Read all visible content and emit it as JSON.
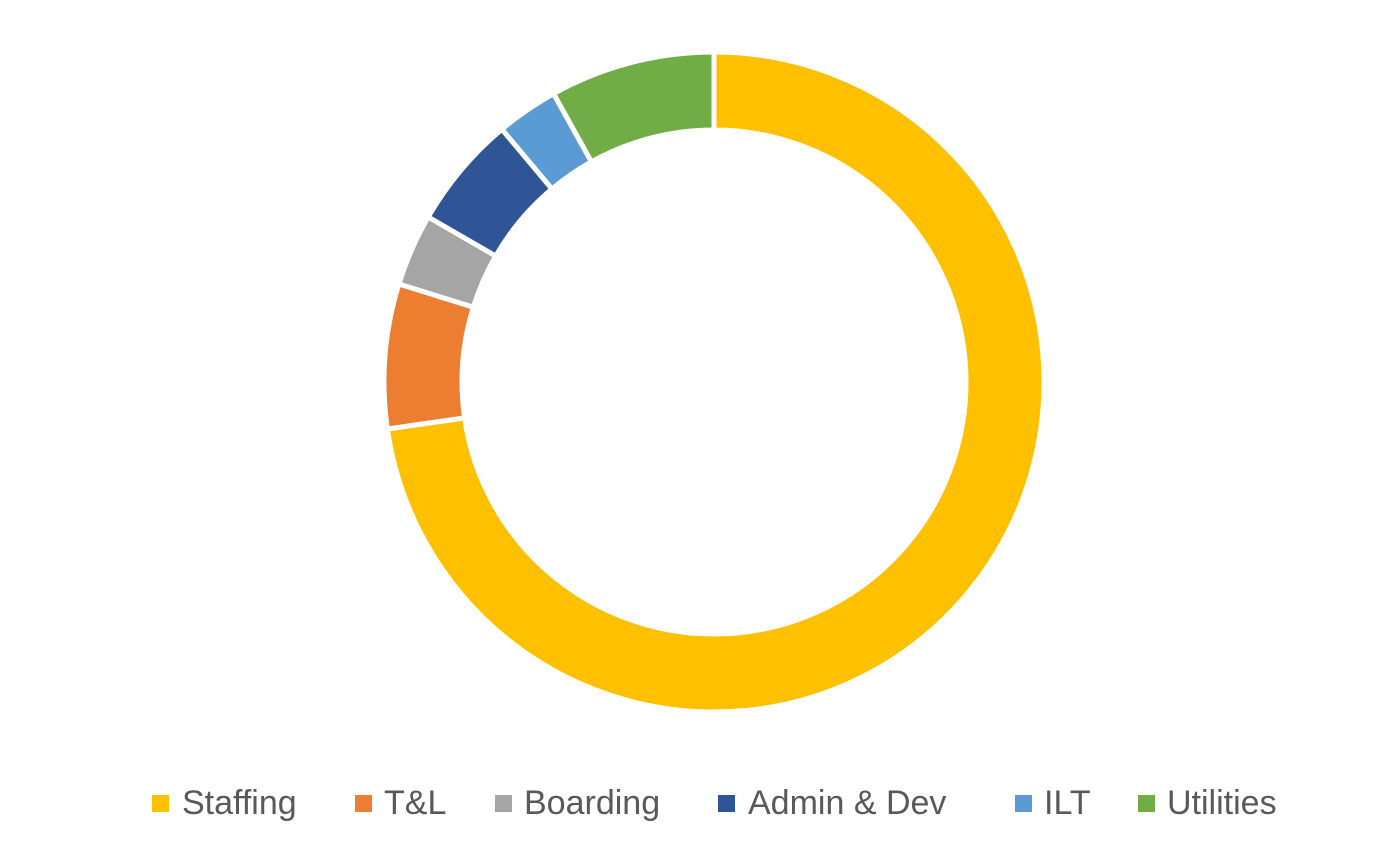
{
  "chart_data": {
    "type": "pie",
    "donut": true,
    "title": "",
    "categories": [
      "Staffing",
      "T&L",
      "Boarding",
      "Admin & Dev",
      "ILT",
      "Utilities"
    ],
    "values": [
      72,
      7,
      3.5,
      5.5,
      3,
      8
    ],
    "unit": "%",
    "colors": [
      "#FFC000",
      "#ED7D31",
      "#A5A5A5",
      "#2F5597",
      "#5B9BD5",
      "#70AD47"
    ],
    "start_angle_deg": 0,
    "direction": "clockwise",
    "legend": {
      "position": "bottom",
      "entries": [
        "Staffing",
        "T&L",
        "Boarding",
        "Admin & Dev",
        "ILT",
        "Utilities"
      ]
    },
    "data_labels": false
  }
}
